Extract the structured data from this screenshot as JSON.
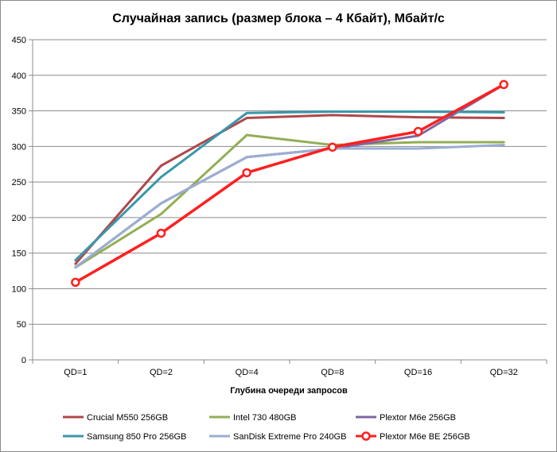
{
  "chart_data": {
    "type": "line",
    "title": "Случайная запись (размер блока – 4 Кбайт), Мбайт/с",
    "xlabel": "Глубина очереди запросов",
    "ylabel": "",
    "ylim": [
      0,
      450
    ],
    "yticks": [
      "0",
      "50",
      "100",
      "150",
      "200",
      "250",
      "300",
      "350",
      "400",
      "450"
    ],
    "grid": true,
    "legend_position": "bottom",
    "categories": [
      "QD=1",
      "QD=2",
      "QD=4",
      "QD=8",
      "QD=16",
      "QD=32"
    ],
    "series": [
      {
        "name": "Crucial M550 256GB",
        "color": "#b0474a",
        "marker": false,
        "values": [
          135,
          273,
          340,
          344,
          341,
          340
        ]
      },
      {
        "name": "Intel 730 480GB",
        "color": "#93ae54",
        "marker": false,
        "values": [
          130,
          205,
          316,
          302,
          306,
          306
        ]
      },
      {
        "name": "Plextor M6e 256GB",
        "color": "#7f67a3",
        "marker": false,
        "values": [
          130,
          220,
          285,
          297,
          315,
          387
        ]
      },
      {
        "name": "Samsung 850 Pro 256GB",
        "color": "#3a97aa",
        "marker": false,
        "values": [
          140,
          257,
          347,
          349,
          349,
          348
        ]
      },
      {
        "name": "SanDisk Extreme Pro 240GB",
        "color": "#9aaed2",
        "marker": false,
        "values": [
          130,
          220,
          285,
          297,
          297,
          302
        ]
      },
      {
        "name": "Plextor M6e BE 256GB",
        "color": "#ff1f1f",
        "marker": true,
        "values": [
          109,
          178,
          263,
          299,
          321,
          387
        ]
      }
    ]
  }
}
